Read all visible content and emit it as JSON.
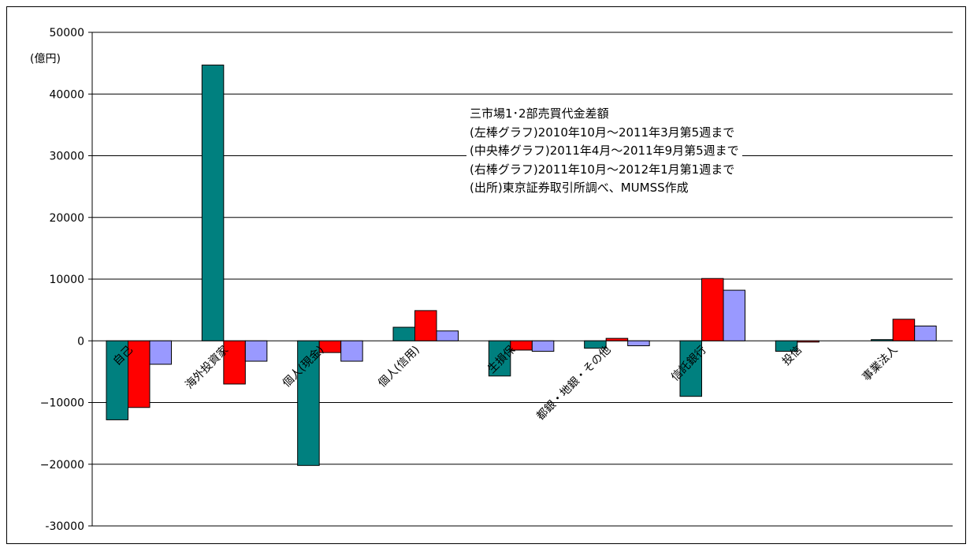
{
  "chart_data": {
    "type": "bar",
    "unit_label": "(億円)",
    "categories": [
      "自己",
      "海外投資家",
      "個人(現金)",
      "個人(信用)",
      "生損保",
      "都銀・地銀・その他",
      "信託銀行",
      "投信",
      "事業法人"
    ],
    "series": [
      {
        "color": "#00807f",
        "values": [
          -12800,
          44700,
          -20200,
          2200,
          -5700,
          -1200,
          -9000,
          -1700,
          200
        ]
      },
      {
        "color": "#ff0000",
        "values": [
          -10800,
          -7000,
          -1900,
          4900,
          -1500,
          400,
          10100,
          -200,
          3500
        ]
      },
      {
        "color": "#9999ff",
        "values": [
          -3800,
          -3300,
          -3300,
          1600,
          -1700,
          -800,
          8200,
          0,
          2400
        ]
      }
    ],
    "ylim": [
      -30000,
      50000
    ],
    "yticks": [
      50000,
      40000,
      30000,
      20000,
      10000,
      0,
      -10000,
      -20000,
      -30000
    ],
    "ytick_labels": [
      "50000",
      "40000",
      "30000",
      "20000",
      "10000",
      "0",
      "−10000",
      "−20000",
      "-30000"
    ],
    "grid": true,
    "annotation_lines": [
      "三市場1･2部売買代金差額",
      "(左棒グラフ)2010年10月～2011年3月第5週まで",
      "(中央棒グラフ)2011年4月～2011年9月第5週まで",
      "(右棒グラフ)2011年10月～2012年1月第1週まで",
      "(出所)東京証券取引所調べ、MUMSS作成"
    ]
  }
}
